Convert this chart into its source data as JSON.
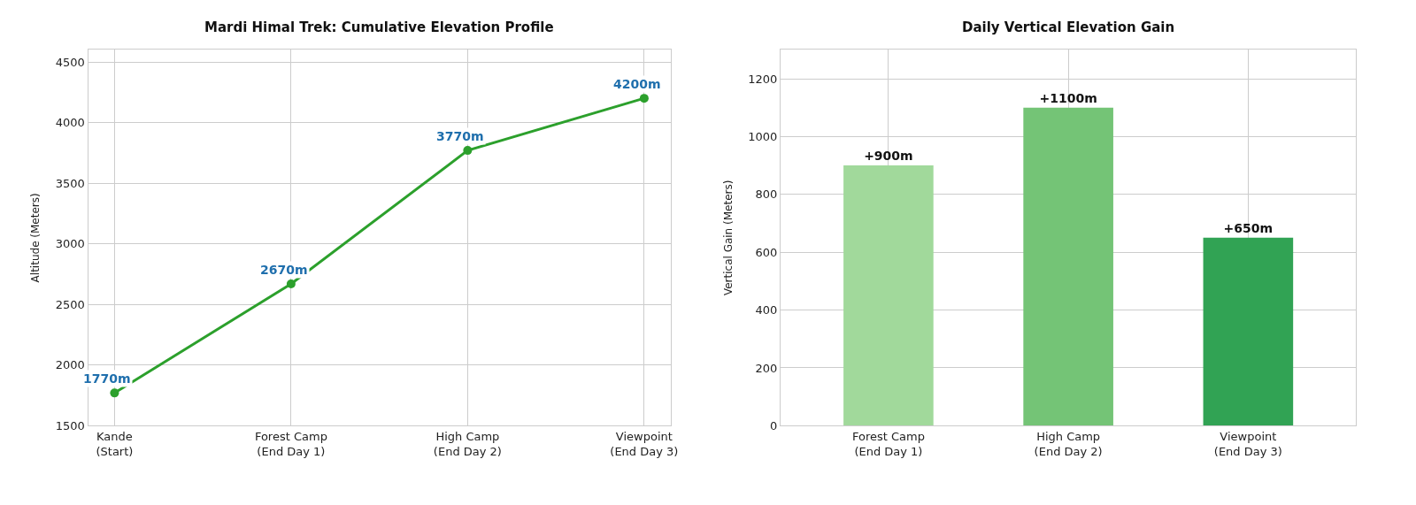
{
  "chart_data": [
    {
      "type": "line",
      "title": "Mardi Himal Trek: Cumulative Elevation Profile",
      "ylabel": "Altitude (Meters)",
      "categories": [
        "Kande\n(Start)",
        "Forest Camp\n(End Day 1)",
        "High Camp\n(End Day 2)",
        "Viewpoint\n(End Day 3)"
      ],
      "series": [
        {
          "color": "#2ca02c",
          "values": [
            1770,
            2670,
            3770,
            4200
          ],
          "value_labels": [
            "1770m",
            "2670m",
            "3770m",
            "4200m"
          ]
        }
      ],
      "ylim": [
        1500,
        4600
      ],
      "yticks": [
        1500,
        2000,
        2500,
        3000,
        3500,
        4000,
        4500
      ],
      "grid": true,
      "marker": "circle",
      "line_style": "solid"
    },
    {
      "type": "bar",
      "title": "Daily Vertical Elevation Gain",
      "ylabel": "Vertical Gain (Meters)",
      "categories": [
        "Forest Camp\n(End Day 1)",
        "High Camp\n(End Day 2)",
        "Viewpoint\n(End Day 3)"
      ],
      "values": [
        900,
        1100,
        650
      ],
      "colors": [
        "#a1d99b",
        "#74c476",
        "#31a354"
      ],
      "value_labels": [
        "+900m",
        "+1100m",
        "+650m"
      ],
      "ylim": [
        0,
        1300
      ],
      "yticks": [
        0,
        200,
        400,
        600,
        800,
        1000,
        1200
      ],
      "grid": true
    }
  ]
}
